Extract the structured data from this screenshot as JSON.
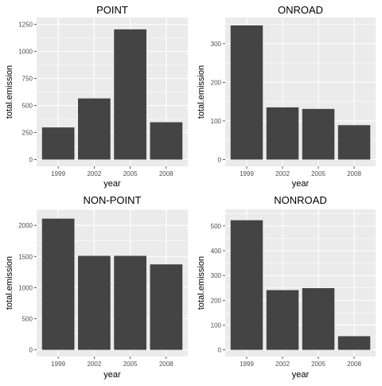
{
  "chart_data": [
    {
      "type": "bar",
      "title": "POINT",
      "xlabel": "year",
      "ylabel": "total.emission",
      "categories": [
        "1999",
        "2002",
        "2005",
        "2008"
      ],
      "values": [
        297,
        565,
        1203,
        345
      ],
      "ylim": [
        0,
        1250
      ],
      "yticks": [
        0,
        250,
        500,
        750,
        1000,
        1250
      ],
      "grid": true,
      "colors": {
        "bar": "#444444",
        "panel": "#ebebeb",
        "grid": "#ffffff"
      }
    },
    {
      "type": "bar",
      "title": "ONROAD",
      "xlabel": "year",
      "ylabel": "total.emission",
      "categories": [
        "1999",
        "2002",
        "2005",
        "2008"
      ],
      "values": [
        347,
        135,
        131,
        89
      ],
      "ylim": [
        0,
        350
      ],
      "yticks": [
        0,
        100,
        200,
        300
      ],
      "grid": true,
      "colors": {
        "bar": "#444444",
        "panel": "#ebebeb",
        "grid": "#ffffff"
      }
    },
    {
      "type": "bar",
      "title": "NON-POINT",
      "xlabel": "year",
      "ylabel": "total.emission",
      "categories": [
        "1999",
        "2002",
        "2005",
        "2008"
      ],
      "values": [
        2108,
        1510,
        1510,
        1373
      ],
      "ylim": [
        0,
        2150
      ],
      "yticks": [
        0,
        500,
        1000,
        1500,
        2000
      ],
      "grid": true,
      "colors": {
        "bar": "#444444",
        "panel": "#ebebeb",
        "grid": "#ffffff"
      }
    },
    {
      "type": "bar",
      "title": "NONROAD",
      "xlabel": "year",
      "ylabel": "total.emission",
      "categories": [
        "1999",
        "2002",
        "2005",
        "2008"
      ],
      "values": [
        523,
        241,
        249,
        55
      ],
      "ylim": [
        0,
        540
      ],
      "yticks": [
        0,
        100,
        200,
        300,
        400,
        500
      ],
      "grid": true,
      "colors": {
        "bar": "#444444",
        "panel": "#ebebeb",
        "grid": "#ffffff"
      }
    }
  ]
}
